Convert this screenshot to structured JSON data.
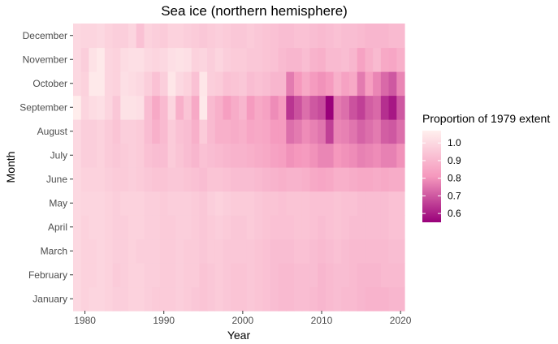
{
  "chart_data": {
    "type": "heatmap",
    "title": "Sea ice (northern hemisphere)",
    "xlabel": "Year",
    "ylabel": "Month",
    "x_ticks": [
      1980,
      1990,
      2000,
      2010,
      2020
    ],
    "xlim": [
      1979,
      2020
    ],
    "months": [
      "January",
      "February",
      "March",
      "April",
      "May",
      "June",
      "July",
      "August",
      "September",
      "October",
      "November",
      "December"
    ],
    "legend": {
      "title": "Proportion of 1979 extent",
      "ticks": [
        1.0,
        0.9,
        0.8,
        0.7,
        0.6
      ],
      "tick_labels": [
        "1.0",
        "0.9",
        "0.8",
        "0.7",
        "0.6"
      ],
      "range": [
        0.55,
        1.07
      ],
      "colors": {
        "high": "#fff0ee",
        "mid": "#f598bd",
        "low": "#99007a"
      },
      "placement": "right"
    },
    "series": [
      {
        "name": "January",
        "values": [
          1.0,
          0.98,
          0.99,
          0.99,
          0.98,
          0.97,
          0.97,
          0.98,
          0.98,
          0.97,
          0.96,
          0.96,
          0.96,
          0.97,
          0.96,
          0.95,
          0.94,
          0.95,
          0.96,
          0.95,
          0.94,
          0.94,
          0.95,
          0.94,
          0.93,
          0.92,
          0.91,
          0.91,
          0.92,
          0.92,
          0.91,
          0.9,
          0.91,
          0.92,
          0.91,
          0.91,
          0.9,
          0.89,
          0.89,
          0.89,
          0.9,
          0.9
        ]
      },
      {
        "name": "February",
        "values": [
          1.0,
          0.98,
          0.98,
          0.99,
          0.98,
          0.96,
          0.97,
          0.98,
          0.98,
          0.97,
          0.97,
          0.96,
          0.96,
          0.97,
          0.96,
          0.96,
          0.94,
          0.95,
          0.96,
          0.95,
          0.94,
          0.94,
          0.95,
          0.94,
          0.93,
          0.92,
          0.91,
          0.91,
          0.92,
          0.92,
          0.92,
          0.9,
          0.91,
          0.92,
          0.92,
          0.91,
          0.9,
          0.9,
          0.9,
          0.91,
          0.91,
          0.91
        ]
      },
      {
        "name": "March",
        "values": [
          1.0,
          0.98,
          0.98,
          0.99,
          0.98,
          0.97,
          0.97,
          0.98,
          0.97,
          0.97,
          0.97,
          0.96,
          0.96,
          0.97,
          0.96,
          0.96,
          0.95,
          0.96,
          0.96,
          0.95,
          0.95,
          0.95,
          0.95,
          0.94,
          0.93,
          0.92,
          0.92,
          0.92,
          0.93,
          0.93,
          0.92,
          0.91,
          0.92,
          0.93,
          0.92,
          0.91,
          0.91,
          0.91,
          0.91,
          0.91,
          0.92,
          0.92
        ]
      },
      {
        "name": "April",
        "values": [
          1.0,
          0.98,
          0.99,
          0.99,
          0.98,
          0.97,
          0.97,
          0.98,
          0.98,
          0.97,
          0.97,
          0.96,
          0.96,
          0.97,
          0.97,
          0.96,
          0.95,
          0.96,
          0.97,
          0.96,
          0.95,
          0.95,
          0.96,
          0.95,
          0.94,
          0.93,
          0.93,
          0.93,
          0.94,
          0.94,
          0.93,
          0.92,
          0.93,
          0.94,
          0.93,
          0.92,
          0.92,
          0.92,
          0.92,
          0.92,
          0.93,
          0.93
        ]
      },
      {
        "name": "May",
        "values": [
          1.0,
          0.99,
          0.99,
          0.99,
          0.98,
          0.97,
          0.98,
          0.98,
          0.98,
          0.97,
          0.97,
          0.96,
          0.97,
          0.97,
          0.97,
          0.96,
          0.95,
          0.97,
          0.98,
          0.97,
          0.96,
          0.96,
          0.96,
          0.95,
          0.94,
          0.94,
          0.93,
          0.94,
          0.94,
          0.94,
          0.93,
          0.93,
          0.93,
          0.94,
          0.93,
          0.93,
          0.92,
          0.92,
          0.92,
          0.92,
          0.93,
          0.93
        ]
      },
      {
        "name": "June",
        "values": [
          1.0,
          0.98,
          0.98,
          0.98,
          0.97,
          0.96,
          0.96,
          0.97,
          0.96,
          0.95,
          0.94,
          0.94,
          0.95,
          0.95,
          0.94,
          0.93,
          0.92,
          0.94,
          0.94,
          0.93,
          0.92,
          0.92,
          0.92,
          0.91,
          0.9,
          0.89,
          0.88,
          0.89,
          0.89,
          0.88,
          0.86,
          0.85,
          0.86,
          0.88,
          0.88,
          0.87,
          0.86,
          0.86,
          0.87,
          0.86,
          0.87,
          0.87
        ]
      },
      {
        "name": "July",
        "values": [
          1.0,
          0.97,
          0.97,
          0.98,
          0.96,
          0.95,
          0.96,
          0.97,
          0.96,
          0.93,
          0.92,
          0.92,
          0.96,
          0.94,
          0.92,
          0.9,
          0.93,
          0.92,
          0.91,
          0.9,
          0.89,
          0.89,
          0.88,
          0.87,
          0.86,
          0.84,
          0.83,
          0.8,
          0.81,
          0.82,
          0.8,
          0.78,
          0.78,
          0.81,
          0.8,
          0.79,
          0.77,
          0.78,
          0.79,
          0.77,
          0.77,
          0.8
        ]
      },
      {
        "name": "August",
        "values": [
          1.0,
          0.97,
          0.97,
          0.98,
          0.96,
          0.94,
          0.97,
          0.97,
          0.96,
          0.92,
          0.88,
          0.91,
          0.96,
          0.93,
          0.92,
          0.88,
          0.96,
          0.91,
          0.88,
          0.88,
          0.87,
          0.88,
          0.85,
          0.86,
          0.85,
          0.82,
          0.82,
          0.74,
          0.76,
          0.79,
          0.77,
          0.75,
          0.66,
          0.78,
          0.77,
          0.75,
          0.72,
          0.74,
          0.76,
          0.71,
          0.7,
          0.74
        ]
      },
      {
        "name": "September",
        "values": [
          1.06,
          0.99,
          1.01,
          1.02,
          0.99,
          0.95,
          1.03,
          1.03,
          1.02,
          0.92,
          0.86,
          0.91,
          0.99,
          0.88,
          0.94,
          0.86,
          1.05,
          0.91,
          0.88,
          0.83,
          0.87,
          0.9,
          0.82,
          0.86,
          0.84,
          0.79,
          0.82,
          0.64,
          0.69,
          0.74,
          0.7,
          0.68,
          0.55,
          0.76,
          0.74,
          0.69,
          0.66,
          0.71,
          0.73,
          0.63,
          0.59,
          0.7
        ]
      },
      {
        "name": "October",
        "values": [
          1.0,
          0.98,
          1.05,
          1.05,
          0.99,
          0.98,
          1.02,
          1.01,
          1.0,
          0.97,
          0.93,
          0.97,
          1.04,
          1.0,
          0.98,
          0.93,
          1.04,
          0.97,
          0.96,
          0.93,
          0.94,
          0.95,
          0.92,
          0.93,
          0.92,
          0.9,
          0.9,
          0.76,
          0.81,
          0.86,
          0.82,
          0.8,
          0.82,
          0.88,
          0.84,
          0.86,
          0.76,
          0.83,
          0.78,
          0.73,
          0.7,
          0.78
        ]
      },
      {
        "name": "November",
        "values": [
          1.0,
          0.97,
          1.03,
          1.05,
          0.99,
          0.98,
          1.01,
          1.02,
          1.02,
          1.0,
          0.99,
          1.0,
          1.02,
          1.03,
          1.02,
          0.98,
          0.99,
          0.97,
          0.99,
          0.97,
          0.96,
          0.96,
          0.95,
          0.95,
          0.94,
          0.93,
          0.91,
          0.9,
          0.9,
          0.92,
          0.89,
          0.88,
          0.91,
          0.91,
          0.92,
          0.9,
          0.84,
          0.88,
          0.91,
          0.86,
          0.85,
          0.88
        ]
      },
      {
        "name": "December",
        "values": [
          1.0,
          0.99,
          0.99,
          1.0,
          0.98,
          0.97,
          0.97,
          0.99,
          0.93,
          0.98,
          0.97,
          0.96,
          0.98,
          0.98,
          0.97,
          0.96,
          0.95,
          0.96,
          0.97,
          0.96,
          0.95,
          0.95,
          0.96,
          0.95,
          0.94,
          0.93,
          0.92,
          0.92,
          0.93,
          0.93,
          0.92,
          0.91,
          0.92,
          0.93,
          0.92,
          0.92,
          0.91,
          0.9,
          0.9,
          0.9,
          0.91,
          0.91
        ]
      }
    ]
  }
}
